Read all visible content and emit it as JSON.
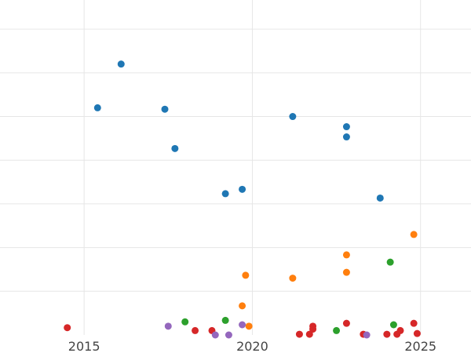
{
  "chart_data": {
    "type": "scatter",
    "title": "",
    "xlabel": "",
    "ylabel": "",
    "xlim": [
      2012.5,
      2026.5
    ],
    "ylim": [
      0,
      23
    ],
    "x_ticks": [
      2015,
      2020,
      2025
    ],
    "x_tick_labels": [
      "2015",
      "2020",
      "2025"
    ],
    "y_gridlines": [
      3,
      6,
      9,
      12,
      15,
      18,
      21
    ],
    "y_tick_labels_visible": false,
    "grid": true,
    "legend": "none",
    "series": [
      {
        "color": "#1f77b4",
        "points": [
          {
            "x": 2015.4,
            "y": 15.6
          },
          {
            "x": 2016.1,
            "y": 18.6
          },
          {
            "x": 2017.4,
            "y": 15.5
          },
          {
            "x": 2017.7,
            "y": 12.8
          },
          {
            "x": 2019.2,
            "y": 9.7
          },
          {
            "x": 2019.7,
            "y": 10.0
          },
          {
            "x": 2021.2,
            "y": 15.0
          },
          {
            "x": 2022.8,
            "y": 14.3
          },
          {
            "x": 2022.8,
            "y": 13.6
          },
          {
            "x": 2023.8,
            "y": 9.4
          }
        ]
      },
      {
        "color": "#ff7f0e",
        "points": [
          {
            "x": 2019.7,
            "y": 2.0
          },
          {
            "x": 2019.8,
            "y": 4.1
          },
          {
            "x": 2019.9,
            "y": 0.6
          },
          {
            "x": 2021.2,
            "y": 3.9
          },
          {
            "x": 2022.8,
            "y": 5.5
          },
          {
            "x": 2022.8,
            "y": 4.3
          },
          {
            "x": 2024.8,
            "y": 6.9
          }
        ]
      },
      {
        "color": "#2ca02c",
        "points": [
          {
            "x": 2018.0,
            "y": 0.9
          },
          {
            "x": 2019.2,
            "y": 1.0
          },
          {
            "x": 2022.5,
            "y": 0.3
          },
          {
            "x": 2024.1,
            "y": 5.0
          },
          {
            "x": 2024.2,
            "y": 0.7
          }
        ]
      },
      {
        "color": "#d62728",
        "points": [
          {
            "x": 2014.5,
            "y": 0.5
          },
          {
            "x": 2018.3,
            "y": 0.3
          },
          {
            "x": 2018.8,
            "y": 0.3
          },
          {
            "x": 2021.4,
            "y": 0.05
          },
          {
            "x": 2021.7,
            "y": 0.05
          },
          {
            "x": 2021.8,
            "y": 0.6
          },
          {
            "x": 2021.8,
            "y": 0.4
          },
          {
            "x": 2022.8,
            "y": 0.8
          },
          {
            "x": 2023.3,
            "y": 0.05
          },
          {
            "x": 2024.0,
            "y": 0.05
          },
          {
            "x": 2024.3,
            "y": 0.05
          },
          {
            "x": 2024.4,
            "y": 0.3
          },
          {
            "x": 2024.8,
            "y": 0.8
          },
          {
            "x": 2024.9,
            "y": 0.1
          }
        ]
      },
      {
        "color": "#9467bd",
        "points": [
          {
            "x": 2017.5,
            "y": 0.6
          },
          {
            "x": 2018.9,
            "y": 0.0
          },
          {
            "x": 2019.3,
            "y": 0.0
          },
          {
            "x": 2019.7,
            "y": 0.7
          },
          {
            "x": 2023.4,
            "y": 0.0
          }
        ]
      }
    ]
  }
}
